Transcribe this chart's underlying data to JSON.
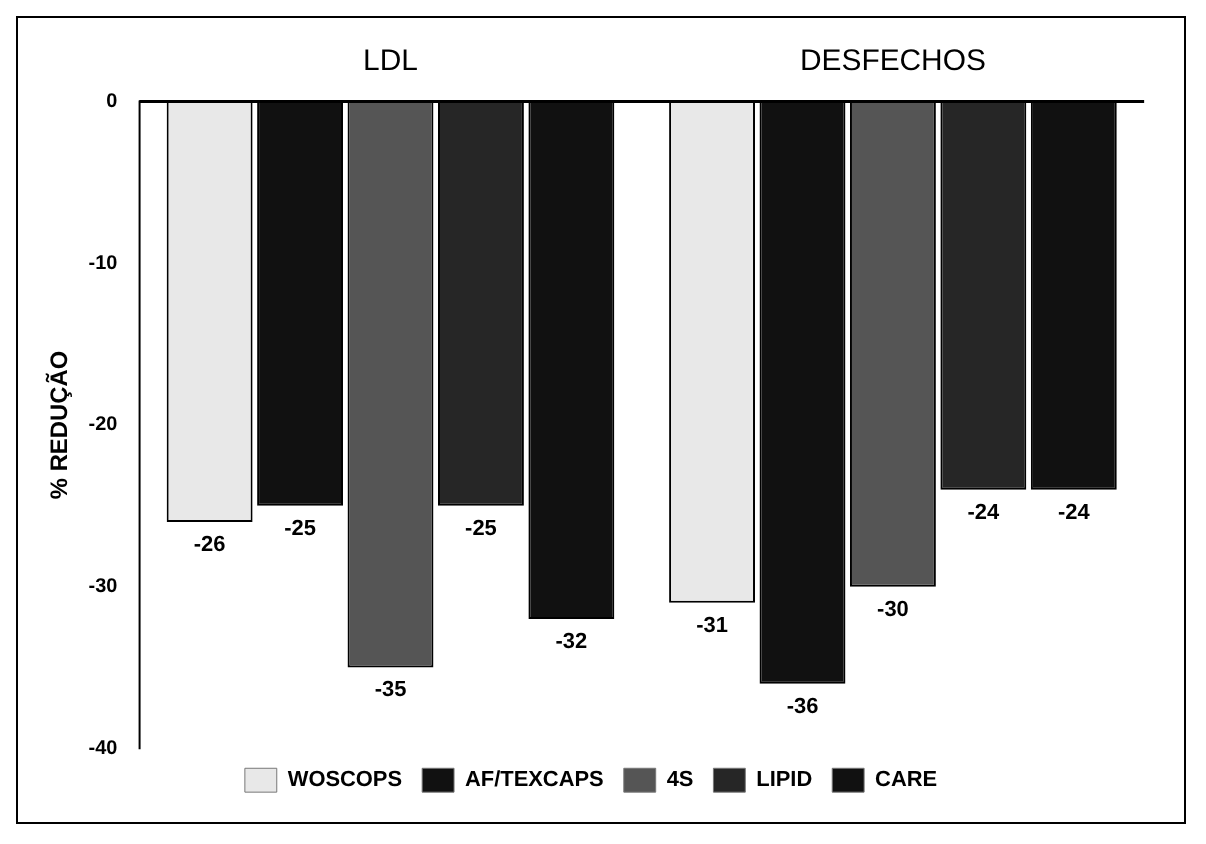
{
  "chart_data": {
    "type": "bar",
    "ylabel": "% REDUÇÃO",
    "categories": [
      "LDL",
      "DESFECHOS"
    ],
    "series": [
      {
        "name": "WOSCOPS",
        "color": "#e8e8e8",
        "values": [
          -26,
          -31
        ]
      },
      {
        "name": "AF/TEXCAPS",
        "color": "#111111",
        "values": [
          -25,
          -36
        ]
      },
      {
        "name": "4S",
        "color": "#555555",
        "values": [
          -35,
          -30
        ]
      },
      {
        "name": "LIPID",
        "color": "#262626",
        "values": [
          -25,
          -24
        ]
      },
      {
        "name": "CARE",
        "color": "#111111",
        "values": [
          -32,
          -24
        ]
      }
    ],
    "ylim": [
      -40,
      0
    ],
    "yticks": [
      0,
      -10,
      -20,
      -30,
      -40
    ],
    "grid": false,
    "legend": "bottom",
    "data_labels": true
  }
}
